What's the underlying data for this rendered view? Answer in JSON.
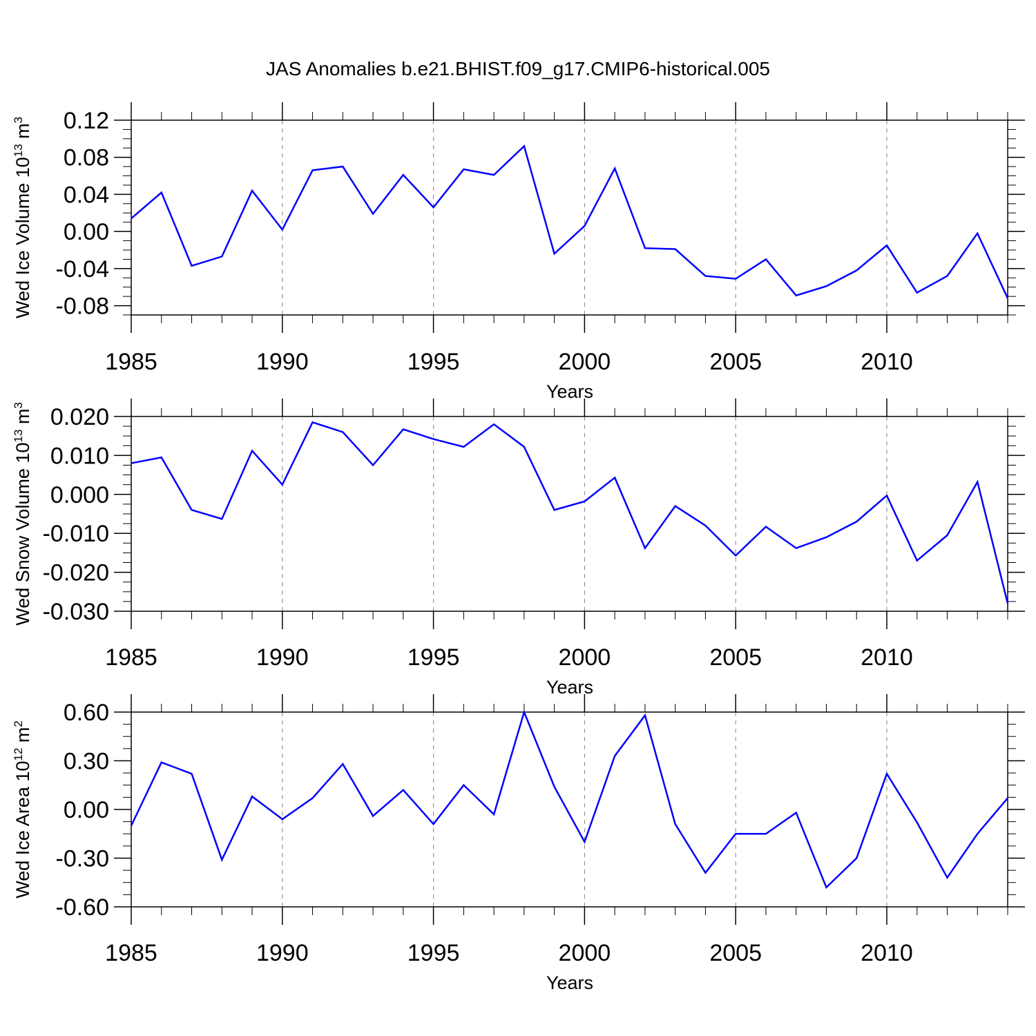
{
  "figure": {
    "title": "JAS Anomalies b.e21.BHIST.f09_g17.CMIP6-historical.005",
    "line_color": "#0000ff",
    "grid_color": "#808080"
  },
  "chart_data": [
    {
      "type": "line",
      "title": "JAS Anomalies b.e21.BHIST.f09_g17.CMIP6-historical.005",
      "xlabel": "Years",
      "ylabel": "Wed Ice Volume 10^13 m^3",
      "ylabel_main": "Wed Ice Volume 10",
      "ylabel_exp": "13",
      "ylabel_unit": "m",
      "ylabel_unit_exp": "3",
      "xlim": [
        1985,
        2014
      ],
      "ylim": [
        -0.09,
        0.12
      ],
      "xticks": [
        1985,
        1990,
        1995,
        2000,
        2005,
        2010
      ],
      "xtick_labels": [
        "1985",
        "1990",
        "1995",
        "2000",
        "2005",
        "2010"
      ],
      "yticks": [
        0.12,
        0.08,
        0.04,
        0.0,
        -0.04,
        -0.08
      ],
      "ytick_labels": [
        "0.12",
        "0.08",
        "0.04",
        "0.00",
        "-0.04",
        "-0.08"
      ],
      "grid": "vertical dashed at major x ticks",
      "x": [
        1985,
        1986,
        1987,
        1988,
        1989,
        1990,
        1991,
        1992,
        1993,
        1994,
        1995,
        1996,
        1997,
        1998,
        1999,
        2000,
        2001,
        2002,
        2003,
        2004,
        2005,
        2006,
        2007,
        2008,
        2009,
        2010,
        2011,
        2012,
        2013,
        2014
      ],
      "series": [
        {
          "values": [
            0.014,
            0.042,
            -0.037,
            -0.027,
            0.044,
            0.002,
            0.066,
            0.07,
            0.019,
            0.061,
            0.026,
            0.067,
            0.061,
            0.092,
            -0.024,
            0.006,
            0.068,
            -0.018,
            -0.019,
            -0.048,
            -0.051,
            -0.03,
            -0.069,
            -0.059,
            -0.042,
            -0.015,
            -0.066,
            -0.048,
            -0.002,
            -0.072
          ]
        }
      ]
    },
    {
      "type": "line",
      "xlabel": "Years",
      "ylabel": "Wed Snow Volume 10^13 m^3",
      "ylabel_main": "Wed Snow Volume 10",
      "ylabel_exp": "13",
      "ylabel_unit": "m",
      "ylabel_unit_exp": "3",
      "xlim": [
        1985,
        2014
      ],
      "ylim": [
        -0.03,
        0.02
      ],
      "xticks": [
        1985,
        1990,
        1995,
        2000,
        2005,
        2010
      ],
      "xtick_labels": [
        "1985",
        "1990",
        "1995",
        "2000",
        "2005",
        "2010"
      ],
      "yticks": [
        0.02,
        0.01,
        0.0,
        -0.01,
        -0.02,
        -0.03
      ],
      "ytick_labels": [
        "0.020",
        "0.010",
        "0.000",
        "-0.010",
        "-0.020",
        "-0.030"
      ],
      "grid": "vertical dashed at major x ticks",
      "x": [
        1985,
        1986,
        1987,
        1988,
        1989,
        1990,
        1991,
        1992,
        1993,
        1994,
        1995,
        1996,
        1997,
        1998,
        1999,
        2000,
        2001,
        2002,
        2003,
        2004,
        2005,
        2006,
        2007,
        2008,
        2009,
        2010,
        2011,
        2012,
        2013,
        2014
      ],
      "series": [
        {
          "values": [
            0.008,
            0.0095,
            -0.004,
            -0.0063,
            0.0112,
            0.0025,
            0.0185,
            0.016,
            0.0075,
            0.0167,
            0.0142,
            0.0122,
            0.018,
            0.0122,
            -0.004,
            -0.0018,
            0.0043,
            -0.0138,
            -0.003,
            -0.008,
            -0.0157,
            -0.0083,
            -0.0138,
            -0.011,
            -0.007,
            -0.0003,
            -0.017,
            -0.0105,
            0.0032,
            -0.028
          ]
        }
      ]
    },
    {
      "type": "line",
      "xlabel": "Years",
      "ylabel": "Wed Ice Area 10^12 m^2",
      "ylabel_main": "Wed Ice Area 10",
      "ylabel_exp": "12",
      "ylabel_unit": "m",
      "ylabel_unit_exp": "2",
      "xlim": [
        1985,
        2014
      ],
      "ylim": [
        -0.6,
        0.6
      ],
      "xticks": [
        1985,
        1990,
        1995,
        2000,
        2005,
        2010
      ],
      "xtick_labels": [
        "1985",
        "1990",
        "1995",
        "2000",
        "2005",
        "2010"
      ],
      "yticks": [
        0.6,
        0.3,
        0.0,
        -0.3,
        -0.6
      ],
      "ytick_labels": [
        "0.60",
        "0.30",
        "0.00",
        "-0.30",
        "-0.60"
      ],
      "grid": "vertical dashed at major x ticks",
      "x": [
        1985,
        1986,
        1987,
        1988,
        1989,
        1990,
        1991,
        1992,
        1993,
        1994,
        1995,
        1996,
        1997,
        1998,
        1999,
        2000,
        2001,
        2002,
        2003,
        2004,
        2005,
        2006,
        2007,
        2008,
        2009,
        2010,
        2011,
        2012,
        2013,
        2014
      ],
      "series": [
        {
          "values": [
            -0.1,
            0.29,
            0.22,
            -0.31,
            0.08,
            -0.06,
            0.07,
            0.28,
            -0.04,
            0.12,
            -0.09,
            0.15,
            -0.03,
            0.6,
            0.14,
            -0.2,
            0.33,
            0.58,
            -0.09,
            -0.39,
            -0.15,
            -0.15,
            -0.02,
            -0.48,
            -0.3,
            0.22,
            -0.08,
            -0.42,
            -0.15,
            0.07
          ]
        }
      ]
    }
  ]
}
